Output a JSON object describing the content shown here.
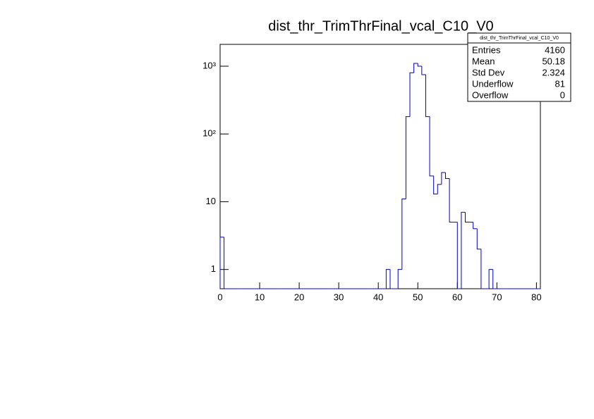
{
  "chart_data": {
    "type": "histogram",
    "title": "dist_thr_TrimThrFinal_vcal_C10_V0",
    "bins": [
      0,
      1,
      2,
      3,
      4,
      5,
      6,
      7,
      8,
      9,
      10,
      11,
      12,
      13,
      14,
      15,
      16,
      17,
      18,
      19,
      20,
      21,
      22,
      23,
      24,
      25,
      26,
      27,
      28,
      29,
      30,
      31,
      32,
      33,
      34,
      35,
      36,
      37,
      38,
      39,
      40,
      41,
      42,
      43,
      44,
      45,
      46,
      47,
      48,
      49,
      50,
      51,
      52,
      53,
      54,
      55,
      56,
      57,
      58,
      59,
      60,
      61,
      62,
      63,
      64,
      65,
      66,
      67,
      68,
      69,
      70,
      71,
      72,
      73,
      74,
      75,
      76,
      77,
      78,
      79,
      80,
      81
    ],
    "values": [
      3,
      0,
      0,
      0,
      0,
      0,
      0,
      0,
      0,
      0,
      0,
      0,
      0,
      0,
      0,
      0,
      0,
      0,
      0,
      0,
      0,
      0,
      0,
      0,
      0,
      0,
      0,
      0,
      0,
      0,
      0,
      0,
      0,
      0,
      0,
      0,
      0,
      0,
      0,
      0,
      0,
      0,
      1,
      0,
      0,
      1,
      11,
      180,
      800,
      1100,
      1000,
      750,
      180,
      24,
      13,
      18,
      27,
      22,
      5,
      5,
      0,
      7,
      5,
      5,
      4,
      2,
      0,
      0,
      1,
      0,
      0,
      0,
      0,
      0,
      0,
      0,
      0,
      0,
      0,
      0,
      0
    ],
    "color": "#0000cc",
    "xlim": [
      0,
      81
    ],
    "xticks": [
      0,
      10,
      20,
      30,
      40,
      50,
      60,
      70,
      80
    ],
    "ylim": [
      0.52,
      2100
    ],
    "log_y": true,
    "yticks": [
      1,
      10,
      {
        "value": 100,
        "label": "10²"
      },
      {
        "value": 1000,
        "label": "10³"
      }
    ],
    "stats": {
      "title": "dist_thr_TrimThrFinal_vcal_C10_V0",
      "rows": [
        {
          "label": "Entries",
          "value": 4160
        },
        {
          "label": "Mean",
          "value": 50.18
        },
        {
          "label": "Std Dev",
          "value": 2.324
        },
        {
          "label": "Underflow",
          "value": 81
        },
        {
          "label": "Overflow",
          "value": 0
        }
      ]
    }
  }
}
